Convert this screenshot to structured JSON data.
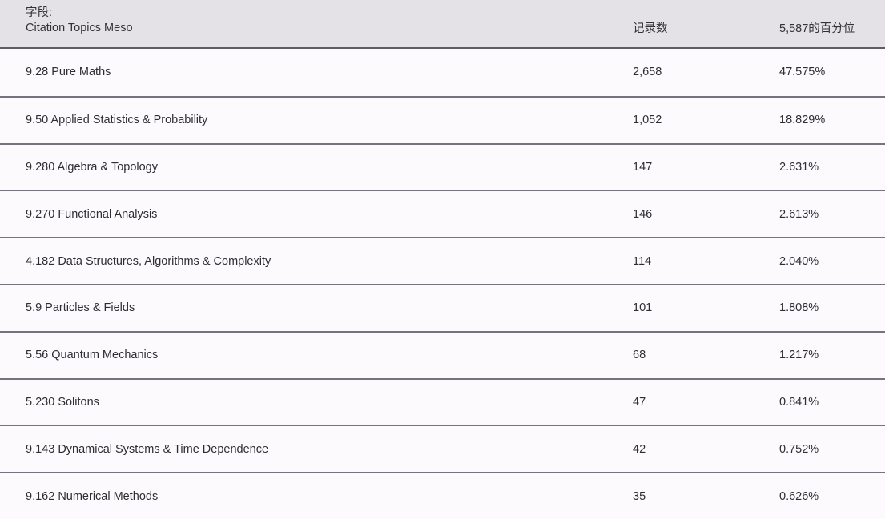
{
  "header": {
    "field_label": "字段:",
    "field_value": "Citation Topics Meso",
    "col_records": "记录数",
    "col_percentile": "5,587的百分位"
  },
  "rows": [
    {
      "topic": "9.28 Pure Maths",
      "records": "2,658",
      "percentile": "47.575%"
    },
    {
      "topic": "9.50 Applied Statistics & Probability",
      "records": "1,052",
      "percentile": "18.829%"
    },
    {
      "topic": "9.280 Algebra & Topology",
      "records": "147",
      "percentile": "2.631%"
    },
    {
      "topic": "9.270 Functional Analysis",
      "records": "146",
      "percentile": "2.613%"
    },
    {
      "topic": "4.182 Data Structures, Algorithms & Complexity",
      "records": "114",
      "percentile": "2.040%"
    },
    {
      "topic": "5.9 Particles & Fields",
      "records": "101",
      "percentile": "1.808%"
    },
    {
      "topic": "5.56 Quantum Mechanics",
      "records": "68",
      "percentile": "1.217%"
    },
    {
      "topic": "5.230 Solitons",
      "records": "47",
      "percentile": "0.841%"
    },
    {
      "topic": "9.143 Dynamical Systems & Time Dependence",
      "records": "42",
      "percentile": "0.752%"
    },
    {
      "topic": "9.162 Numerical Methods",
      "records": "35",
      "percentile": "0.626%"
    }
  ],
  "colors": {
    "header_background": "#e4e2e7",
    "row_background": "#fdfafe",
    "header_divider": "#5e5b63",
    "row_divider": "#767280",
    "text": "#2e2d31"
  }
}
